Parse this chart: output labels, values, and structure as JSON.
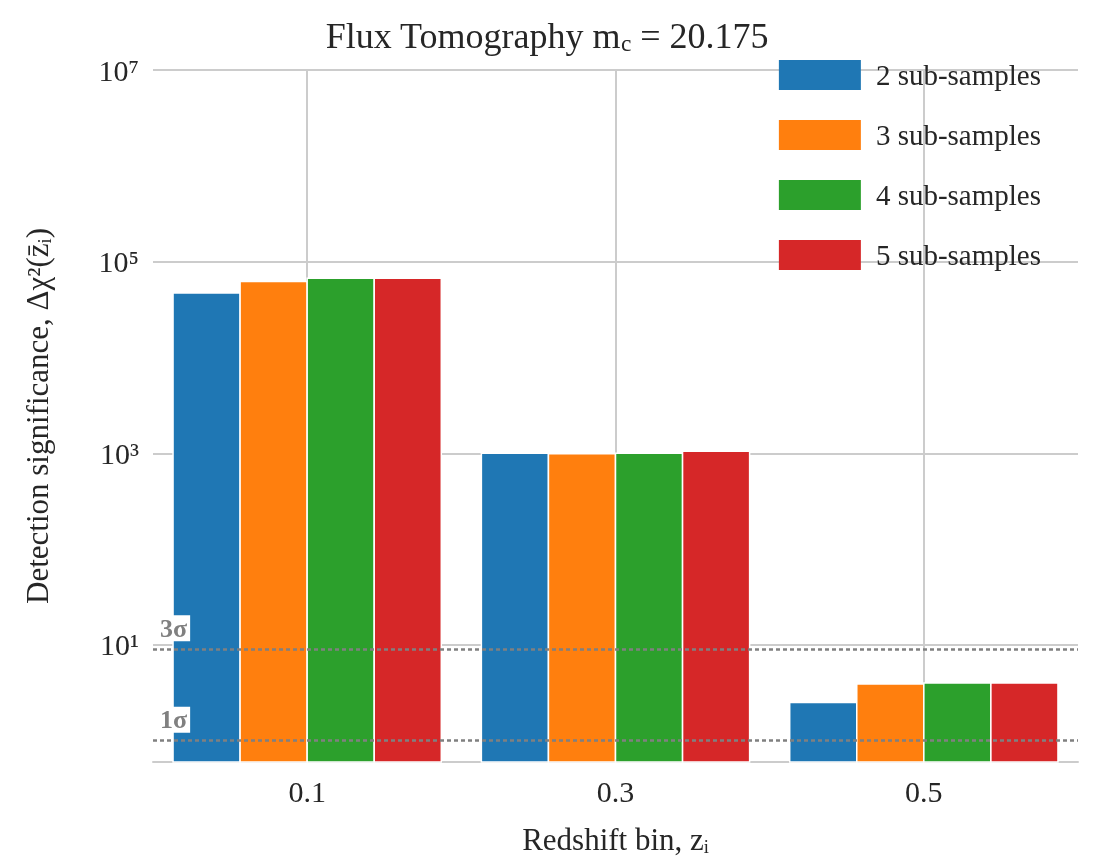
{
  "chart_data": {
    "type": "bar",
    "title": "Flux Tomography m$_{c}$ = 20.175",
    "xlabel": "Redshift bin, zᵢ",
    "ylabel": "Detection significance, Δχ²(z̄ᵢ)",
    "categories": [
      "0.1",
      "0.3",
      "0.5"
    ],
    "series": [
      {
        "name": "2 sub-samples",
        "color": "#1f77b4",
        "values": [
          47000,
          1000,
          2.5
        ]
      },
      {
        "name": "3 sub-samples",
        "color": "#ff7f0e",
        "values": [
          62000,
          990,
          3.9
        ]
      },
      {
        "name": "4 sub-samples",
        "color": "#2ca02c",
        "values": [
          67000,
          1000,
          4.0
        ]
      },
      {
        "name": "5 sub-samples",
        "color": "#d62728",
        "values": [
          67000,
          1050,
          4.0
        ]
      }
    ],
    "log": "y",
    "ylim": [
      0.6,
      10000000
    ],
    "yticks": [
      {
        "value": 10,
        "label": "10¹"
      },
      {
        "value": 1000,
        "label": "10³"
      },
      {
        "value": 100000,
        "label": "10⁵"
      },
      {
        "value": 10000000,
        "label": "10⁷"
      }
    ],
    "ref_lines": [
      {
        "axis": "y",
        "value": 9,
        "label": "3σ",
        "color": "#808080",
        "line_style": "dashed"
      },
      {
        "axis": "y",
        "value": 1,
        "label": "1σ",
        "color": "#808080",
        "line_style": "dashed"
      }
    ],
    "grid": true,
    "legend": "top right"
  }
}
